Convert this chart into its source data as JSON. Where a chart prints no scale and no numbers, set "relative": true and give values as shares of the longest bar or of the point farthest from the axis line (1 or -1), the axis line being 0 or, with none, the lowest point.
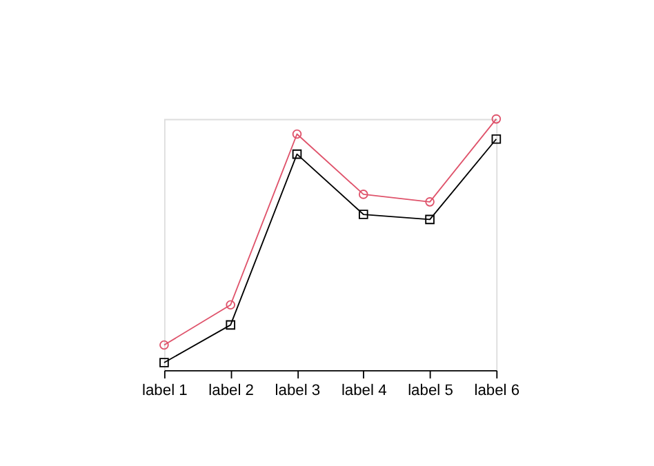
{
  "chart_data": {
    "type": "line",
    "relative": true,
    "categories": [
      "label 1",
      "label 2",
      "label 3",
      "label 4",
      "label 5",
      "label 6"
    ],
    "series": [
      {
        "color": "#000000",
        "marker": "square",
        "values": [
          0.03,
          0.18,
          0.86,
          0.62,
          0.6,
          0.92
        ]
      },
      {
        "color": "#df536b",
        "marker": "circle",
        "values": [
          0.1,
          0.26,
          0.94,
          0.7,
          0.67,
          1
        ]
      }
    ],
    "grid": false
  }
}
